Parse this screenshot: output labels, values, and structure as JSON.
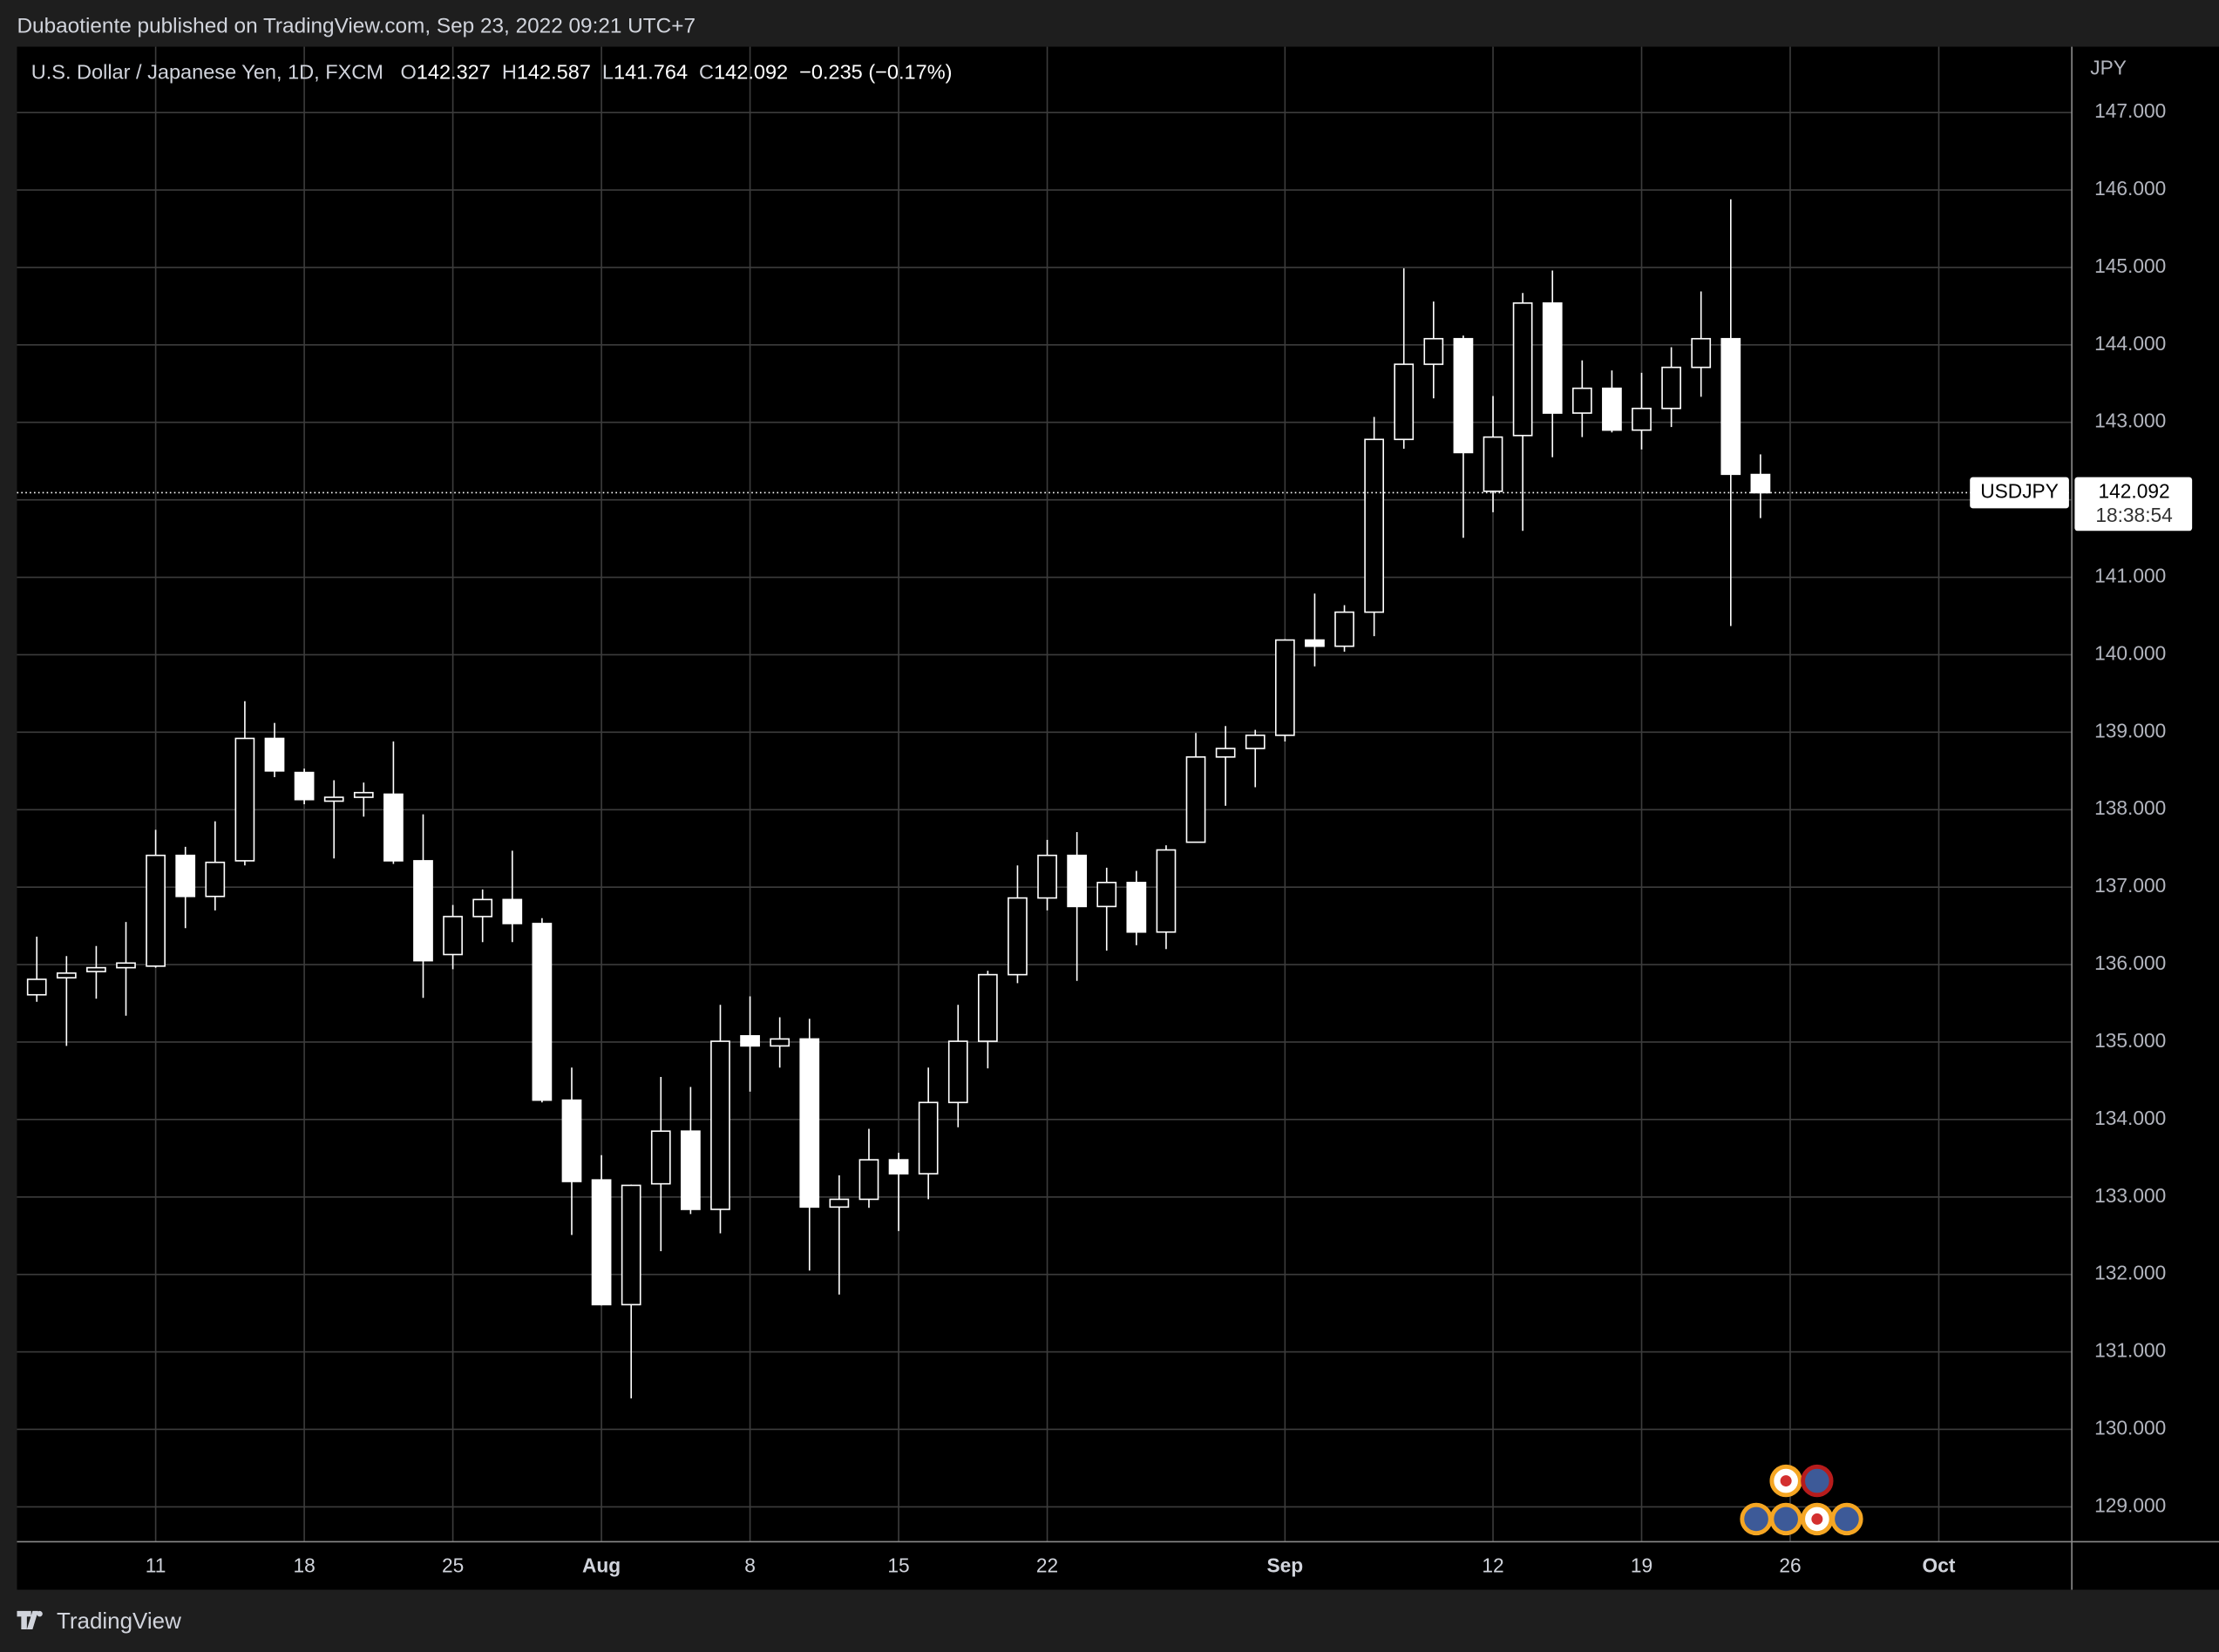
{
  "chart_data": {
    "type": "candlestick",
    "published": "Dubaotiente published on TradingView.com, Sep 23, 2022 09:21 UTC+7",
    "symbol": "U.S. Dollar / Japanese Yen, 1D, FXCM",
    "legend": [
      {
        "label": "O",
        "value": 142.327
      },
      {
        "label": "H",
        "value": 142.587
      },
      {
        "label": "L",
        "value": 141.764
      },
      {
        "label": "C",
        "value": 142.092
      }
    ],
    "change": "−0.235 (−0.17%)",
    "currency": "JPY",
    "last_price": {
      "label": "USDJPY",
      "value": 142.092,
      "countdown": "18:38:54"
    },
    "footer": "TradingView",
    "color": "#ffffff",
    "grid": true,
    "categories": [
      "2022-07-05",
      "2022-07-06",
      "2022-07-07",
      "2022-07-08",
      "2022-07-11",
      "2022-07-12",
      "2022-07-13",
      "2022-07-14",
      "2022-07-15",
      "2022-07-18",
      "2022-07-19",
      "2022-07-20",
      "2022-07-21",
      "2022-07-22",
      "2022-07-25",
      "2022-07-26",
      "2022-07-27",
      "2022-07-28",
      "2022-07-29",
      "2022-08-01",
      "2022-08-02",
      "2022-08-03",
      "2022-08-04",
      "2022-08-05",
      "2022-08-08",
      "2022-08-09",
      "2022-08-10",
      "2022-08-11",
      "2022-08-12",
      "2022-08-15",
      "2022-08-16",
      "2022-08-17",
      "2022-08-18",
      "2022-08-19",
      "2022-08-22",
      "2022-08-23",
      "2022-08-24",
      "2022-08-25",
      "2022-08-26",
      "2022-08-29",
      "2022-08-30",
      "2022-08-31",
      "2022-09-01",
      "2022-09-02",
      "2022-09-05",
      "2022-09-06",
      "2022-09-07",
      "2022-09-08",
      "2022-09-09",
      "2022-09-12",
      "2022-09-13",
      "2022-09-14",
      "2022-09-15",
      "2022-09-16",
      "2022-09-19",
      "2022-09-20",
      "2022-09-21",
      "2022-09-22",
      "2022-09-23"
    ],
    "open": [
      135.61,
      135.83,
      135.91,
      135.96,
      135.98,
      137.41,
      136.88,
      137.34,
      138.92,
      138.48,
      138.11,
      138.16,
      138.2,
      137.34,
      136.13,
      136.62,
      136.84,
      136.53,
      134.25,
      133.22,
      131.61,
      133.17,
      133.85,
      132.84,
      135.08,
      134.95,
      135.04,
      132.87,
      132.97,
      133.48,
      133.3,
      134.22,
      135.01,
      135.87,
      136.86,
      137.41,
      136.75,
      137.06,
      136.42,
      137.58,
      138.68,
      138.79,
      138.96,
      140.19,
      140.11,
      140.55,
      142.78,
      143.75,
      144.08,
      142.11,
      142.83,
      144.54,
      143.12,
      143.44,
      142.9,
      143.18,
      143.71,
      144.08,
      142.327
    ],
    "high": [
      136.36,
      136.11,
      136.24,
      136.55,
      137.74,
      137.52,
      137.85,
      139.4,
      139.12,
      138.53,
      138.38,
      138.35,
      138.88,
      137.94,
      136.77,
      136.97,
      137.47,
      136.6,
      134.67,
      133.54,
      133.16,
      134.55,
      134.42,
      135.48,
      135.59,
      135.32,
      135.3,
      133.28,
      133.88,
      133.57,
      134.67,
      135.48,
      135.92,
      137.28,
      137.61,
      137.71,
      137.25,
      137.21,
      137.54,
      138.99,
      139.08,
      139.03,
      140.2,
      140.79,
      140.64,
      143.07,
      144.99,
      144.56,
      144.12,
      143.34,
      144.67,
      144.96,
      143.8,
      143.67,
      143.64,
      143.97,
      144.69,
      145.88,
      142.587
    ],
    "low": [
      135.52,
      134.95,
      135.56,
      135.34,
      135.96,
      136.47,
      136.7,
      137.28,
      138.42,
      138.07,
      137.37,
      137.91,
      137.3,
      135.57,
      135.94,
      136.29,
      136.29,
      134.22,
      132.51,
      131.6,
      130.4,
      132.3,
      132.78,
      132.53,
      134.36,
      134.67,
      132.05,
      131.74,
      132.86,
      132.56,
      132.97,
      133.9,
      134.66,
      135.76,
      136.7,
      135.79,
      136.18,
      136.25,
      136.2,
      137.58,
      138.05,
      138.29,
      138.88,
      139.85,
      140.04,
      140.24,
      142.66,
      143.31,
      141.51,
      141.84,
      141.6,
      142.55,
      142.81,
      142.87,
      142.65,
      142.94,
      143.33,
      140.37,
      141.764
    ],
    "close": [
      135.81,
      135.89,
      135.96,
      136.02,
      137.41,
      136.88,
      137.32,
      138.92,
      138.5,
      138.13,
      138.16,
      138.22,
      137.34,
      136.05,
      136.62,
      136.84,
      136.53,
      134.25,
      133.2,
      131.61,
      133.15,
      133.85,
      132.84,
      135.01,
      134.95,
      135.04,
      132.87,
      132.97,
      133.48,
      133.3,
      134.22,
      135.01,
      135.87,
      136.86,
      137.41,
      136.75,
      137.06,
      136.42,
      137.48,
      138.68,
      138.79,
      138.96,
      140.19,
      140.11,
      140.55,
      142.78,
      143.75,
      144.08,
      142.61,
      142.81,
      144.54,
      143.12,
      143.44,
      142.9,
      143.18,
      143.71,
      144.08,
      142.33,
      142.092
    ],
    "ylim": [
      128.55,
      147.85
    ],
    "yticks": [
      {
        "value": 129,
        "label": "129.000"
      },
      {
        "value": 130,
        "label": "130.000"
      },
      {
        "value": 131,
        "label": "131.000"
      },
      {
        "value": 132,
        "label": "132.000"
      },
      {
        "value": 133,
        "label": "133.000"
      },
      {
        "value": 134,
        "label": "134.000"
      },
      {
        "value": 135,
        "label": "135.000"
      },
      {
        "value": 136,
        "label": "136.000"
      },
      {
        "value": 137,
        "label": "137.000"
      },
      {
        "value": 138,
        "label": "138.000"
      },
      {
        "value": 139,
        "label": "139.000"
      },
      {
        "value": 140,
        "label": "140.000"
      },
      {
        "value": 141,
        "label": "141.000"
      },
      {
        "value": 142,
        "label": "142.000"
      },
      {
        "value": 143,
        "label": "143.000"
      },
      {
        "value": 144,
        "label": "144.000"
      },
      {
        "value": 145,
        "label": "145.000"
      },
      {
        "value": 146,
        "label": "146.000"
      },
      {
        "value": 147,
        "label": "147.000"
      }
    ],
    "xticks": [
      {
        "value": "2022-07-11",
        "label": "11"
      },
      {
        "value": "2022-07-18",
        "label": "18"
      },
      {
        "value": "2022-07-25",
        "label": "25"
      },
      {
        "value": "2022-08-01",
        "label": "Aug"
      },
      {
        "value": "2022-08-08",
        "label": "8"
      },
      {
        "value": "2022-08-15",
        "label": "15"
      },
      {
        "value": "2022-08-22",
        "label": "22"
      },
      {
        "value": "2022-09-01",
        "label": "Sep"
      },
      {
        "value": "2022-09-12",
        "label": "12"
      },
      {
        "value": "2022-09-19",
        "label": "19"
      },
      {
        "value": "2022-09-26",
        "label": "26"
      },
      {
        "value": "2022-10-01",
        "label": "Oct"
      }
    ]
  }
}
